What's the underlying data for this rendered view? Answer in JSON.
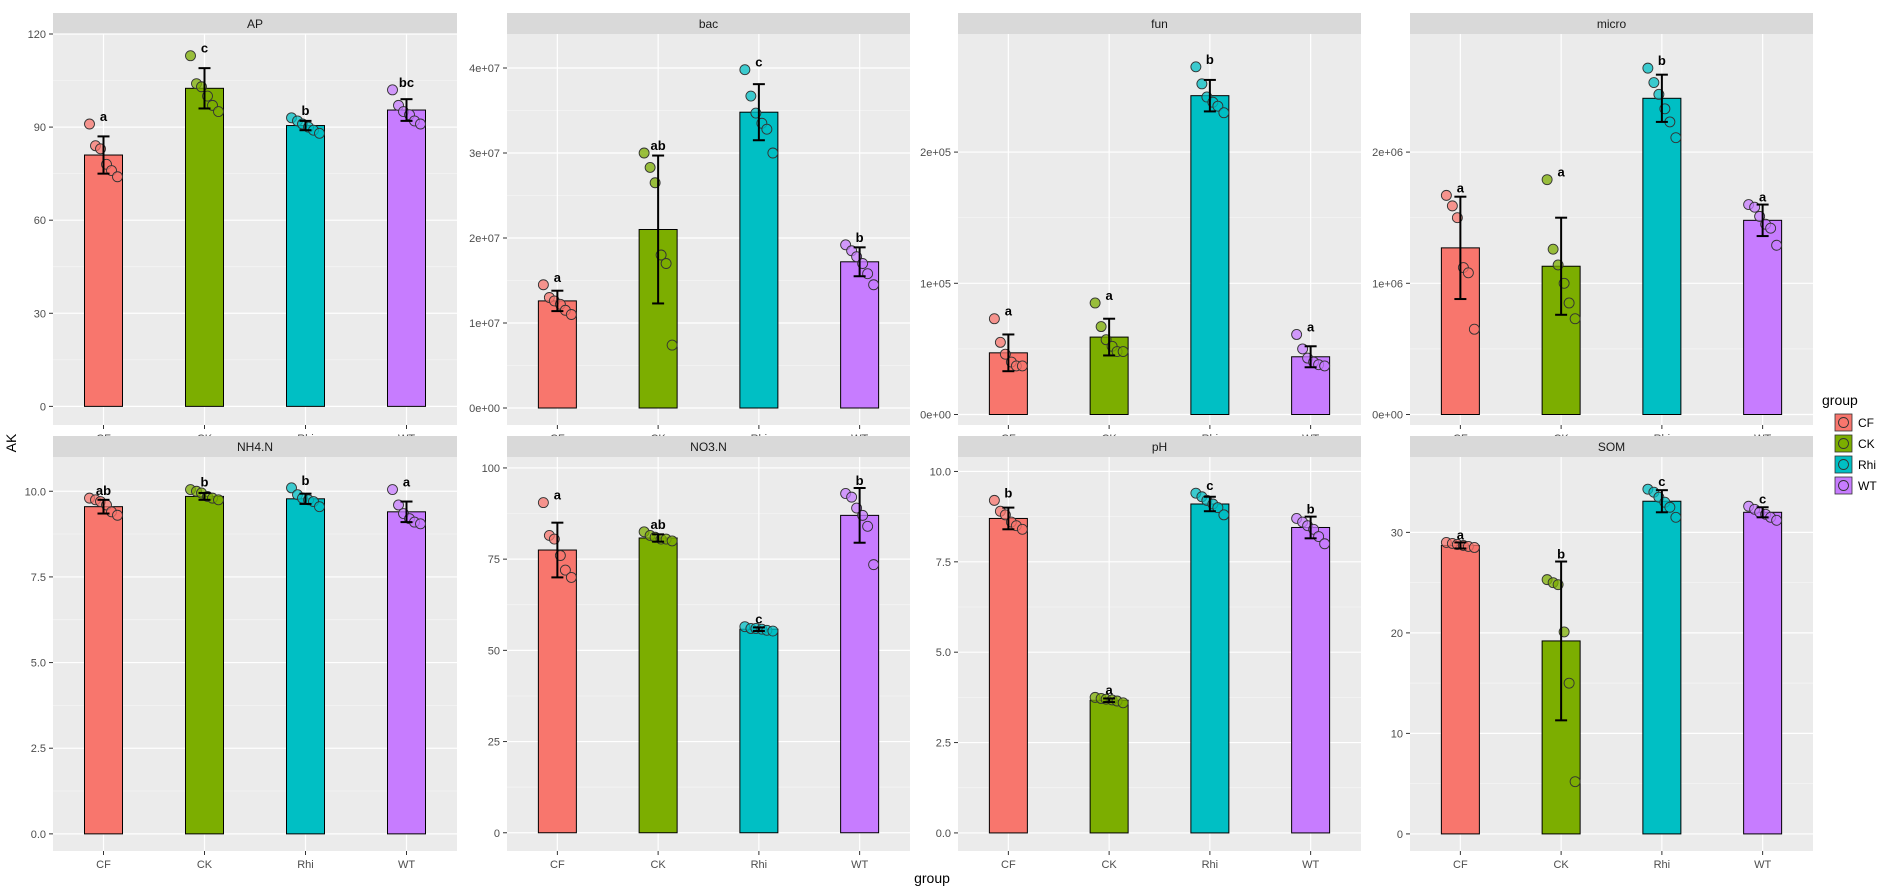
{
  "chart_data": {
    "type": "bar",
    "facet_type": "bar with error bars and jittered points",
    "xlabel": "group",
    "ylabel": "AK",
    "categories": [
      "CF",
      "CK",
      "Rhi",
      "WT"
    ],
    "colors": {
      "CF": "#F8766D",
      "CK": "#7CAE00",
      "Rhi": "#00BFC4",
      "WT": "#C77CFF"
    },
    "legend": {
      "title": "group",
      "entries": [
        "CF",
        "CK",
        "Rhi",
        "WT"
      ],
      "position": "right"
    },
    "panels": [
      {
        "title": "AP",
        "ylim": [
          -6,
          120
        ],
        "ticks": [
          0,
          30,
          60,
          90,
          120
        ],
        "tick_labels": [
          "0",
          "30",
          "60",
          "90",
          "120"
        ],
        "means": [
          81,
          102.5,
          90.5,
          95.5
        ],
        "sd": [
          6,
          6.5,
          1.5,
          3.5
        ],
        "letters": [
          "a",
          "c",
          "b",
          "bc"
        ],
        "points": [
          [
            91,
            84,
            83,
            78,
            76,
            74
          ],
          [
            113,
            104,
            103,
            100,
            97,
            95
          ],
          [
            93,
            92,
            91,
            90,
            89,
            88
          ],
          [
            102,
            97,
            95,
            94,
            92,
            91
          ]
        ]
      },
      {
        "title": "bac",
        "ylim": [
          -2000000,
          44000000
        ],
        "ticks": [
          0,
          10000000,
          20000000,
          30000000,
          40000000
        ],
        "tick_labels": [
          "0e+00",
          "1e+07",
          "2e+07",
          "3e+07",
          "4e+07"
        ],
        "means": [
          12600000,
          21000000,
          34800000,
          17200000
        ],
        "sd": [
          1200000,
          8700000,
          3300000,
          1700000
        ],
        "letters": [
          "a",
          "ab",
          "c",
          "b"
        ],
        "points": [
          [
            14500000,
            13000000,
            12600000,
            12200000,
            11500000,
            11000000
          ],
          [
            30000000,
            28300000,
            26500000,
            18000000,
            17000000,
            7400000
          ],
          [
            39800000,
            36700000,
            34700000,
            33500000,
            32800000,
            30000000
          ],
          [
            19200000,
            18500000,
            17800000,
            17000000,
            15800000,
            14500000
          ]
        ]
      },
      {
        "title": "fun",
        "ylim": [
          -8000,
          290000
        ],
        "ticks": [
          0,
          100000,
          200000
        ],
        "tick_labels": [
          "0e+00",
          "1e+05",
          "2e+05"
        ],
        "means": [
          47000,
          59000,
          243000,
          44000
        ],
        "sd": [
          14000,
          14000,
          12000,
          8000
        ],
        "letters": [
          "a",
          "a",
          "b",
          "a"
        ],
        "points": [
          [
            73000,
            55000,
            46000,
            40000,
            37000,
            37000
          ],
          [
            85000,
            67000,
            57000,
            52000,
            48000,
            48000
          ],
          [
            265000,
            252000,
            242000,
            238000,
            235000,
            230000
          ],
          [
            61000,
            50000,
            43000,
            40000,
            38000,
            37000
          ]
        ]
      },
      {
        "title": "micro",
        "ylim": [
          -80000,
          2900000
        ],
        "ticks": [
          0,
          1000000,
          2000000
        ],
        "tick_labels": [
          "0e+00",
          "1e+06",
          "2e+06"
        ],
        "means": [
          1270000,
          1130000,
          2410000,
          1480000
        ],
        "sd": [
          390000,
          370000,
          180000,
          120000
        ],
        "letters": [
          "a",
          "a",
          "b",
          "a"
        ],
        "points": [
          [
            1670000,
            1590000,
            1500000,
            1120000,
            1080000,
            650000
          ],
          [
            1790000,
            1260000,
            1140000,
            1000000,
            850000,
            730000
          ],
          [
            2640000,
            2530000,
            2440000,
            2330000,
            2230000,
            2110000
          ],
          [
            1600000,
            1580000,
            1510000,
            1450000,
            1420000,
            1290000
          ]
        ]
      },
      {
        "title": "NH4.N",
        "ylim": [
          -0.5,
          11
        ],
        "ticks": [
          0,
          2.5,
          5,
          7.5,
          10
        ],
        "tick_labels": [
          "0.0",
          "2.5",
          "5.0",
          "7.5",
          "10.0"
        ],
        "means": [
          9.55,
          9.85,
          9.78,
          9.4
        ],
        "sd": [
          0.2,
          0.1,
          0.15,
          0.3
        ],
        "letters": [
          "ab",
          "b",
          "b",
          "a"
        ],
        "points": [
          [
            9.8,
            9.75,
            9.7,
            9.6,
            9.4,
            9.3
          ],
          [
            10.05,
            10.0,
            9.95,
            9.85,
            9.8,
            9.75
          ],
          [
            10.1,
            9.9,
            9.8,
            9.75,
            9.7,
            9.55
          ],
          [
            10.05,
            9.6,
            9.35,
            9.2,
            9.1,
            9.05
          ]
        ]
      },
      {
        "title": "NO3.N",
        "ylim": [
          -5,
          103
        ],
        "ticks": [
          0,
          25,
          50,
          75,
          100
        ],
        "tick_labels": [
          "0",
          "25",
          "50",
          "75",
          "100"
        ],
        "means": [
          77.5,
          80.8,
          55.8,
          87
        ],
        "sd": [
          7.5,
          1,
          0.5,
          7.5
        ],
        "letters": [
          "a",
          "ab",
          "c",
          "b"
        ],
        "points": [
          [
            90.5,
            81.5,
            80.5,
            76,
            72,
            70
          ],
          [
            82.5,
            81.5,
            81,
            80.5,
            80.5,
            80
          ],
          [
            56.5,
            56,
            56,
            55.8,
            55.5,
            55.3
          ],
          [
            93,
            92,
            89,
            87,
            84,
            73.5
          ]
        ]
      },
      {
        "title": "pH",
        "ylim": [
          -0.5,
          10.4
        ],
        "ticks": [
          0,
          2.5,
          5,
          7.5,
          10
        ],
        "tick_labels": [
          "0.0",
          "2.5",
          "5.0",
          "7.5",
          "10.0"
        ],
        "means": [
          8.7,
          3.67,
          9.1,
          8.45
        ],
        "sd": [
          0.3,
          0.05,
          0.2,
          0.3
        ],
        "letters": [
          "b",
          "a",
          "c",
          "b"
        ],
        "points": [
          [
            9.2,
            8.9,
            8.8,
            8.6,
            8.5,
            8.4
          ],
          [
            3.75,
            3.72,
            3.7,
            3.68,
            3.65,
            3.6
          ],
          [
            9.4,
            9.3,
            9.2,
            9.1,
            9.0,
            8.8
          ],
          [
            8.7,
            8.6,
            8.5,
            8.4,
            8.2,
            8.0
          ]
        ]
      },
      {
        "title": "SOM",
        "ylim": [
          -1.7,
          37.5
        ],
        "ticks": [
          0,
          10,
          20,
          30
        ],
        "tick_labels": [
          "0",
          "10",
          "20",
          "30"
        ],
        "means": [
          28.7,
          19.2,
          33.1,
          32.0
        ],
        "sd": [
          0.3,
          7.9,
          1.1,
          0.5
        ],
        "letters": [
          "a",
          "b",
          "c",
          "c"
        ],
        "points": [
          [
            29.0,
            28.9,
            28.8,
            28.7,
            28.6,
            28.5
          ],
          [
            25.3,
            25.0,
            24.8,
            20.1,
            15.0,
            5.2
          ],
          [
            34.3,
            34.0,
            33.5,
            33.0,
            32.5,
            31.5
          ],
          [
            32.6,
            32.3,
            32.0,
            31.8,
            31.5,
            31.2
          ]
        ]
      }
    ]
  }
}
